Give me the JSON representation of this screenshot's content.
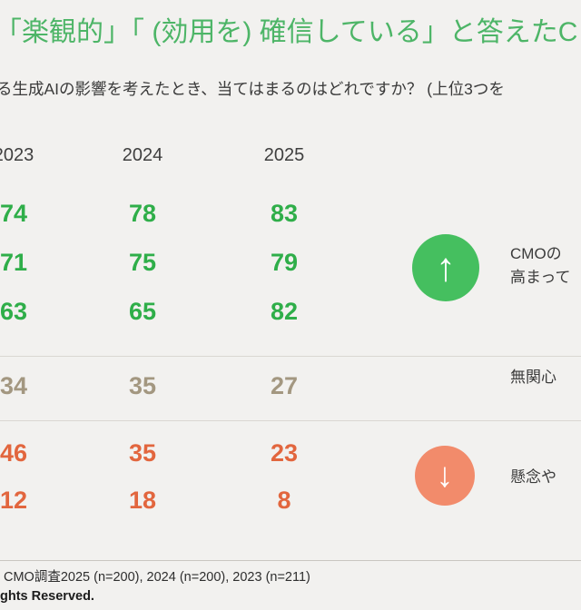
{
  "slide": {
    "title": "「楽観的」「 (効用を) 確信している」と答えたC",
    "subtitle": "る生成AIの影響を考えたとき、当てはまるのはどれですか？ (上位3つを",
    "annotations": {
      "positive_line1": "CMOの",
      "positive_line2": "高まって",
      "neutral_line1": "無関心",
      "negative_line1": "懸念や"
    },
    "footer": {
      "source": "CMO調査2025 (n=200), 2024 (n=200), 2023 (n=211)",
      "copyright": "ghts Reserved."
    }
  },
  "icons": {
    "up_arrow": "↑",
    "down_arrow": "↓"
  },
  "colors": {
    "title_green": "#4db567",
    "positive_green": "#2fae49",
    "neutral_tan": "#a39780",
    "negative_orange": "#e2663e",
    "circle_up_green": "#45bf5f",
    "circle_down_salmon": "#f28b6b",
    "background": "#f2f1ef"
  },
  "chart_data": {
    "type": "table",
    "title": "「楽観的」「 (効用を) 確信している」と答えたC",
    "columns": [
      "2023",
      "2024",
      "2025"
    ],
    "rows": [
      {
        "group": "positive",
        "values": [
          74,
          78,
          83
        ]
      },
      {
        "group": "positive",
        "values": [
          71,
          75,
          79
        ]
      },
      {
        "group": "positive",
        "values": [
          63,
          65,
          82
        ]
      },
      {
        "group": "neutral",
        "values": [
          34,
          35,
          27
        ]
      },
      {
        "group": "negative",
        "values": [
          46,
          35,
          23
        ]
      },
      {
        "group": "negative",
        "values": [
          12,
          18,
          8
        ]
      }
    ],
    "layout": {
      "positive_trend": "up",
      "negative_trend": "down",
      "grid": "row-separators"
    }
  }
}
